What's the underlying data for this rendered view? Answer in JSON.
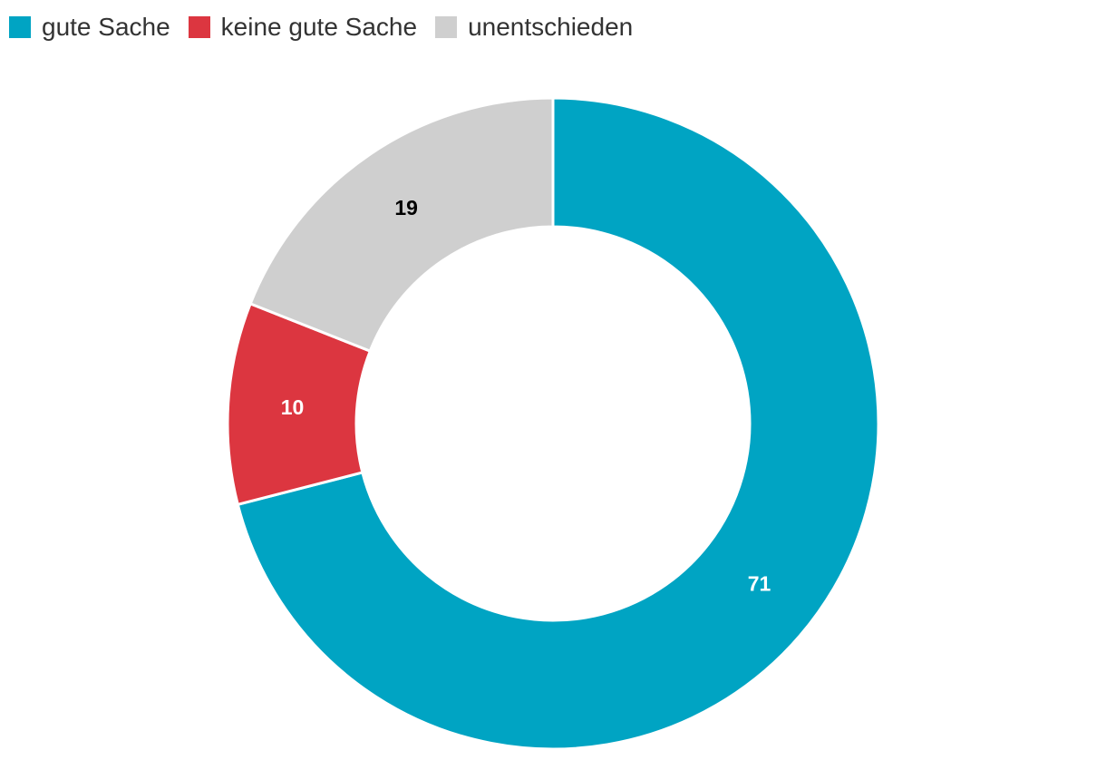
{
  "chart_data": {
    "type": "pie",
    "donut": true,
    "legend_position": "top-left",
    "series": [
      {
        "name": "gute Sache",
        "value": 71,
        "label": "71",
        "color": "#00a4c3",
        "label_color": "#ffffff"
      },
      {
        "name": "keine gute Sache",
        "value": 10,
        "label": "10",
        "color": "#dc3640",
        "label_color": "#ffffff"
      },
      {
        "name": "unentschieden",
        "value": 19,
        "label": "19",
        "color": "#cfcfcf",
        "label_color": "#000000"
      }
    ]
  }
}
